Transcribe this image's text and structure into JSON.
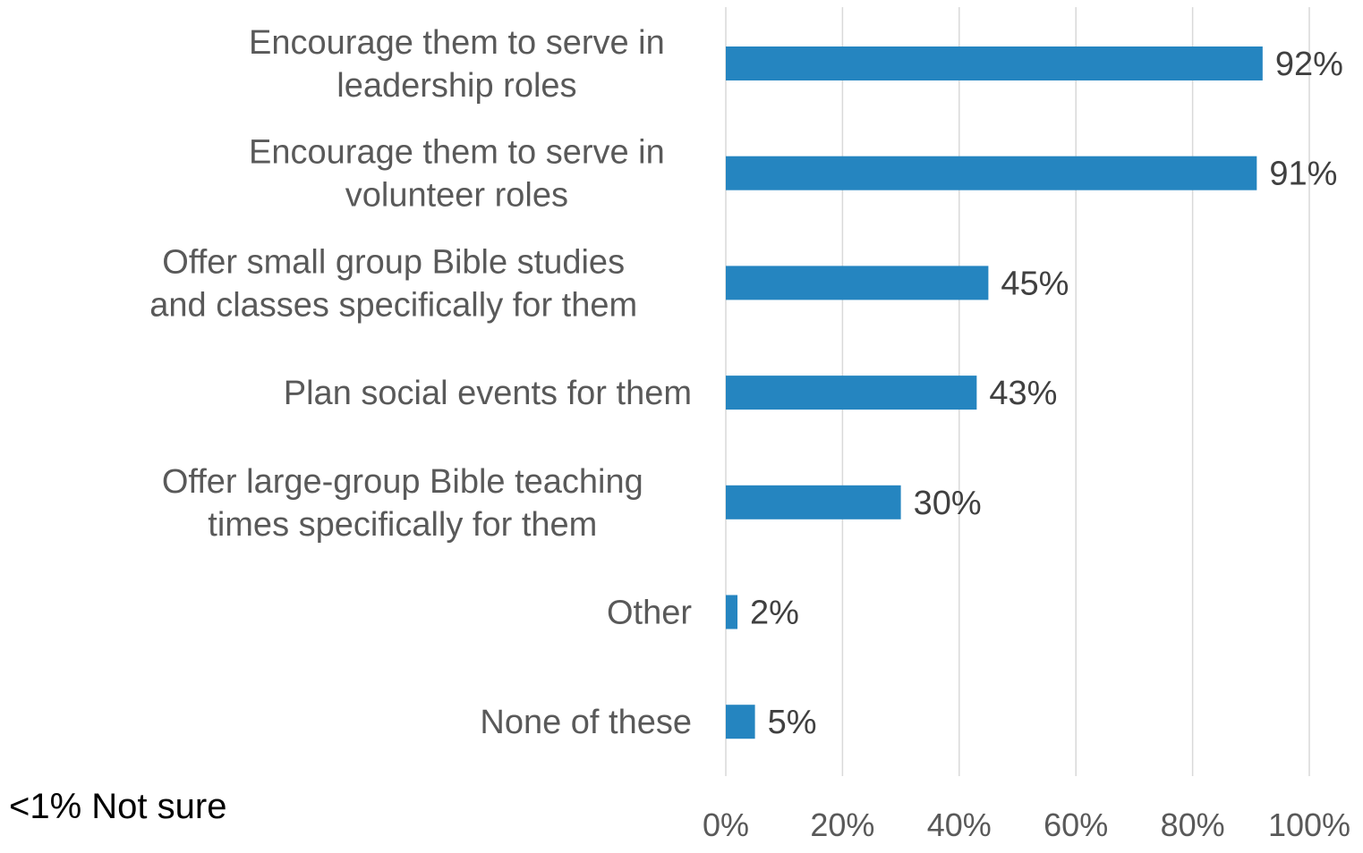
{
  "chart_data": {
    "type": "bar",
    "orientation": "horizontal",
    "categories": [
      [
        "Encourage them to serve in",
        "leadership roles"
      ],
      [
        "Encourage them to serve in",
        "volunteer roles"
      ],
      [
        "Offer small group Bible studies",
        "and classes specifically for them"
      ],
      [
        "Plan social events for them"
      ],
      [
        "Offer large-group Bible teaching",
        "times specifically for them"
      ],
      [
        "Other"
      ],
      [
        "None of these"
      ]
    ],
    "values": [
      92,
      91,
      45,
      43,
      30,
      2,
      5
    ],
    "value_labels": [
      "92%",
      "91%",
      "45%",
      "43%",
      "30%",
      "2%",
      "5%"
    ],
    "xlim": [
      0,
      100
    ],
    "xticks": [
      0,
      20,
      40,
      60,
      80,
      100
    ],
    "xtick_labels": [
      "0%",
      "20%",
      "40%",
      "60%",
      "80%",
      "100%"
    ],
    "grid": "vertical",
    "bar_color": "#2585C0",
    "gridline_color": "#D9D9D9"
  },
  "note": "<1% Not sure"
}
